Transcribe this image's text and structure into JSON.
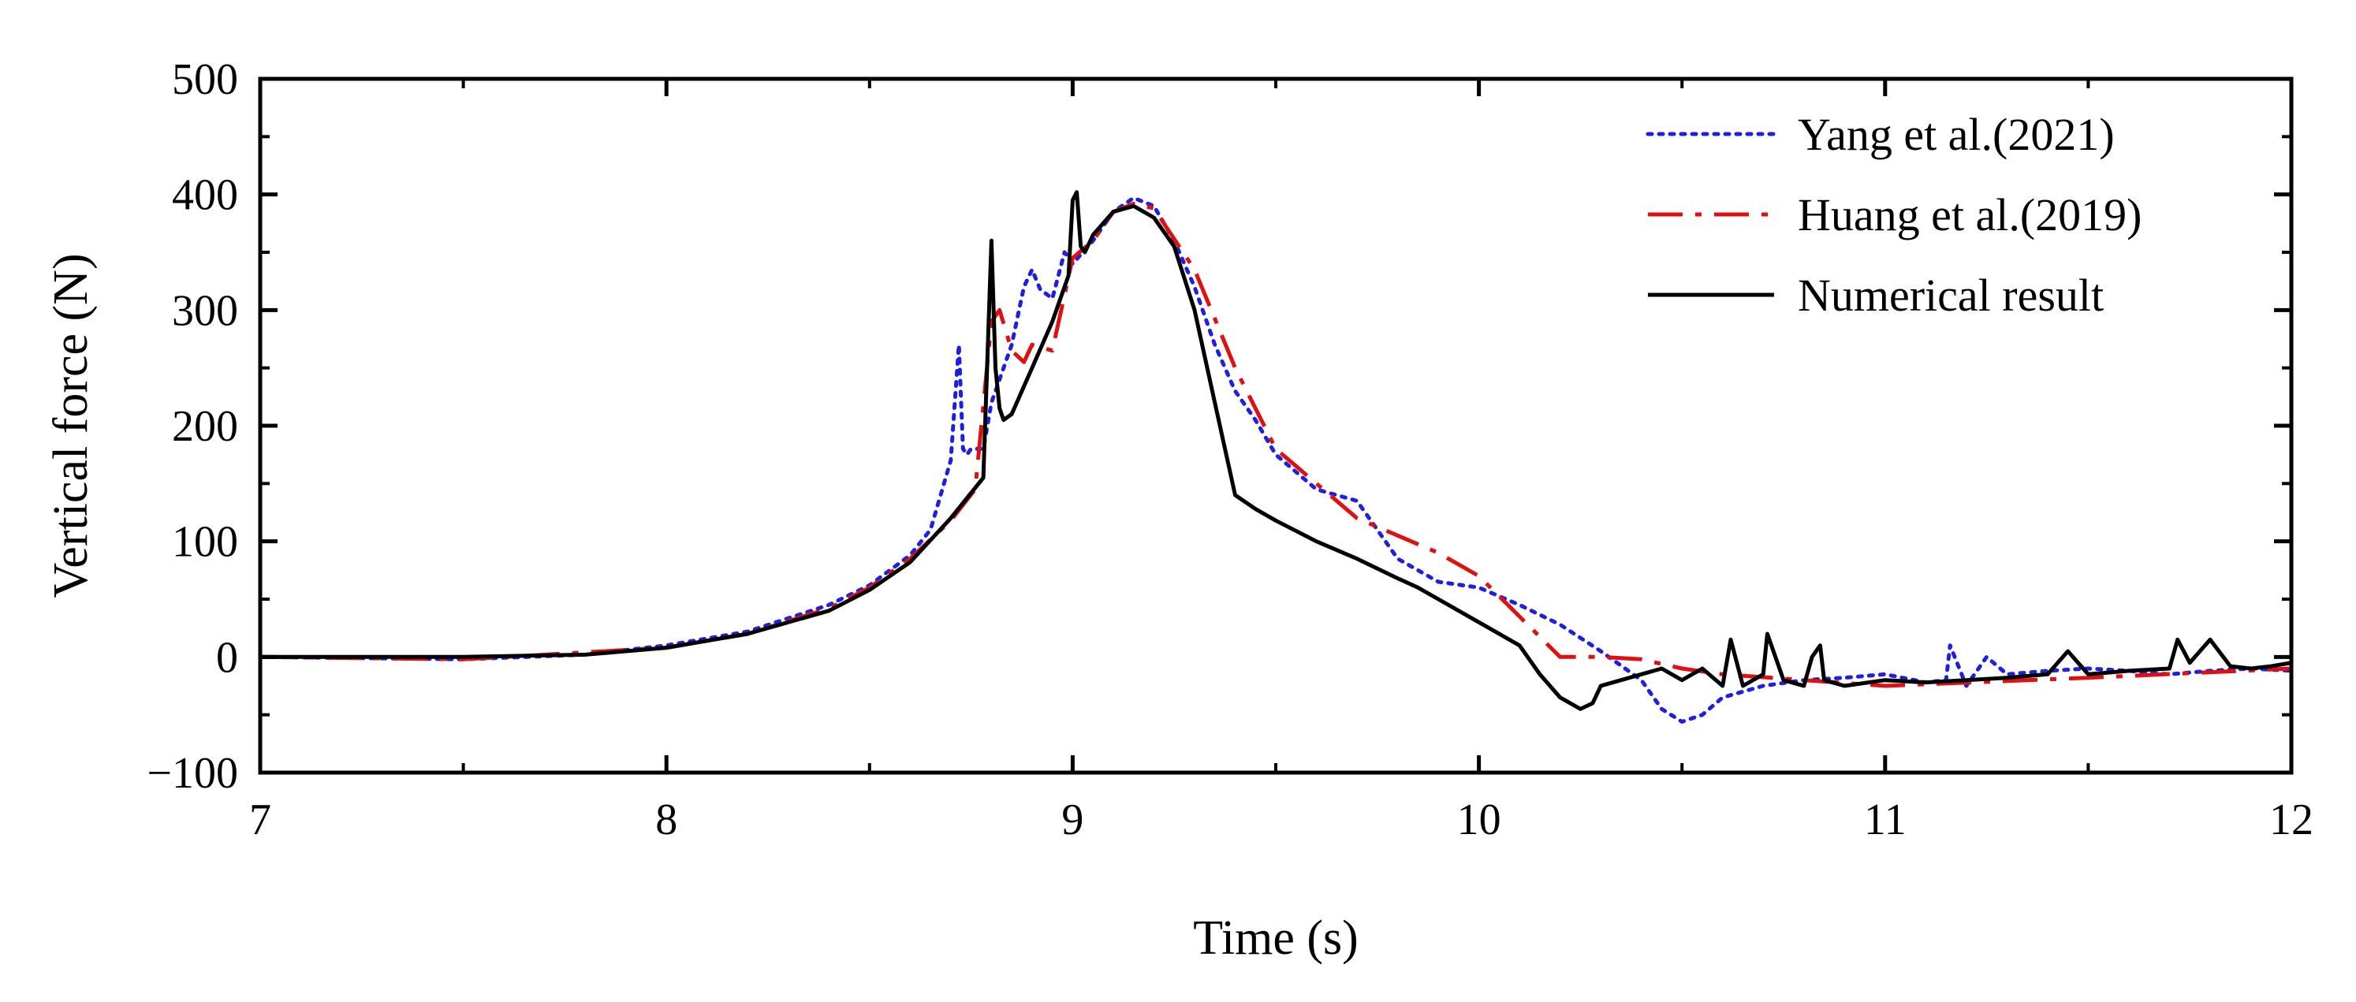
{
  "chart_data": {
    "type": "line",
    "title": "",
    "xlabel": "Time (s)",
    "ylabel": "Vertical force (N)",
    "xlim": [
      7,
      12
    ],
    "ylim": [
      -100,
      500
    ],
    "xticks": [
      7,
      8,
      9,
      10,
      11,
      12
    ],
    "yticks": [
      -100,
      0,
      100,
      200,
      300,
      400,
      500
    ],
    "xtick_labels": [
      "7",
      "8",
      "9",
      "10",
      "11",
      "12"
    ],
    "ytick_labels": [
      "−100",
      "0",
      "100",
      "200",
      "300",
      "400",
      "500"
    ],
    "grid": false,
    "legend_position": "top-right",
    "series": [
      {
        "name": "Yang et al.(2021)",
        "color": "#1f1fe0",
        "style": "dotted",
        "x": [
          7.0,
          7.5,
          7.8,
          8.0,
          8.2,
          8.4,
          8.5,
          8.6,
          8.65,
          8.7,
          8.72,
          8.73,
          8.74,
          8.75,
          8.78,
          8.8,
          8.82,
          8.85,
          8.88,
          8.9,
          8.92,
          8.95,
          8.98,
          9.0,
          9.05,
          9.1,
          9.15,
          9.2,
          9.25,
          9.3,
          9.35,
          9.4,
          9.45,
          9.5,
          9.6,
          9.7,
          9.8,
          9.9,
          10.0,
          10.1,
          10.2,
          10.3,
          10.4,
          10.45,
          10.5,
          10.55,
          10.6,
          10.65,
          10.7,
          10.8,
          10.9,
          11.0,
          11.1,
          11.15,
          11.16,
          11.2,
          11.25,
          11.3,
          11.4,
          11.5,
          11.6,
          11.7,
          11.8,
          11.9,
          12.0
        ],
        "y": [
          0,
          -2,
          2,
          10,
          22,
          45,
          62,
          88,
          110,
          170,
          270,
          180,
          175,
          180,
          180,
          220,
          240,
          270,
          320,
          335,
          318,
          310,
          350,
          340,
          360,
          385,
          397,
          390,
          360,
          320,
          270,
          230,
          205,
          175,
          145,
          135,
          85,
          65,
          60,
          45,
          28,
          5,
          -20,
          -45,
          -56,
          -50,
          -35,
          -30,
          -25,
          -20,
          -18,
          -15,
          -22,
          -20,
          10,
          -25,
          0,
          -15,
          -12,
          -10,
          -12,
          -15,
          -12,
          -10,
          -12
        ]
      },
      {
        "name": "Huang et al.(2019)",
        "color": "#e01010",
        "style": "dashdot",
        "x": [
          7.0,
          7.5,
          8.0,
          8.2,
          8.4,
          8.5,
          8.6,
          8.7,
          8.76,
          8.8,
          8.82,
          8.85,
          8.88,
          8.9,
          8.95,
          9.0,
          9.05,
          9.1,
          9.15,
          9.2,
          9.3,
          9.4,
          9.5,
          9.6,
          9.7,
          9.8,
          9.9,
          10.0,
          10.1,
          10.2,
          10.3,
          10.4,
          10.5,
          10.6,
          10.8,
          11.0,
          11.5,
          12.0
        ],
        "y": [
          0,
          -2,
          8,
          20,
          42,
          60,
          85,
          118,
          145,
          290,
          300,
          265,
          255,
          270,
          265,
          345,
          360,
          385,
          392,
          388,
          335,
          250,
          180,
          150,
          120,
          105,
          90,
          70,
          35,
          0,
          0,
          -2,
          -10,
          -15,
          -20,
          -25,
          -18,
          -10
        ]
      },
      {
        "name": "Numerical result",
        "color": "#000000",
        "style": "solid",
        "x": [
          7.0,
          7.5,
          7.8,
          8.0,
          8.2,
          8.4,
          8.5,
          8.6,
          8.7,
          8.78,
          8.8,
          8.81,
          8.82,
          8.83,
          8.85,
          8.9,
          8.95,
          8.99,
          9.0,
          9.01,
          9.02,
          9.03,
          9.05,
          9.1,
          9.15,
          9.2,
          9.25,
          9.3,
          9.35,
          9.4,
          9.45,
          9.5,
          9.6,
          9.7,
          9.8,
          9.85,
          9.9,
          10.0,
          10.1,
          10.15,
          10.2,
          10.25,
          10.28,
          10.3,
          10.35,
          10.4,
          10.45,
          10.5,
          10.55,
          10.6,
          10.62,
          10.65,
          10.7,
          10.71,
          10.75,
          10.8,
          10.82,
          10.84,
          10.85,
          10.9,
          11.0,
          11.1,
          11.2,
          11.3,
          11.4,
          11.45,
          11.5,
          11.6,
          11.7,
          11.72,
          11.75,
          11.8,
          11.85,
          11.9,
          11.95,
          12.0
        ],
        "y": [
          0,
          0,
          2,
          8,
          20,
          40,
          58,
          82,
          120,
          155,
          360,
          250,
          215,
          205,
          210,
          250,
          290,
          330,
          395,
          402,
          355,
          350,
          365,
          385,
          390,
          380,
          355,
          300,
          220,
          140,
          128,
          118,
          100,
          85,
          68,
          60,
          50,
          30,
          10,
          -15,
          -35,
          -45,
          -40,
          -25,
          -20,
          -15,
          -10,
          -20,
          -10,
          -25,
          15,
          -25,
          -15,
          20,
          -20,
          -25,
          0,
          10,
          -20,
          -25,
          -20,
          -22,
          -20,
          -18,
          -15,
          5,
          -15,
          -12,
          -10,
          15,
          -5,
          15,
          -8,
          -10,
          -8,
          -5
        ]
      }
    ]
  }
}
